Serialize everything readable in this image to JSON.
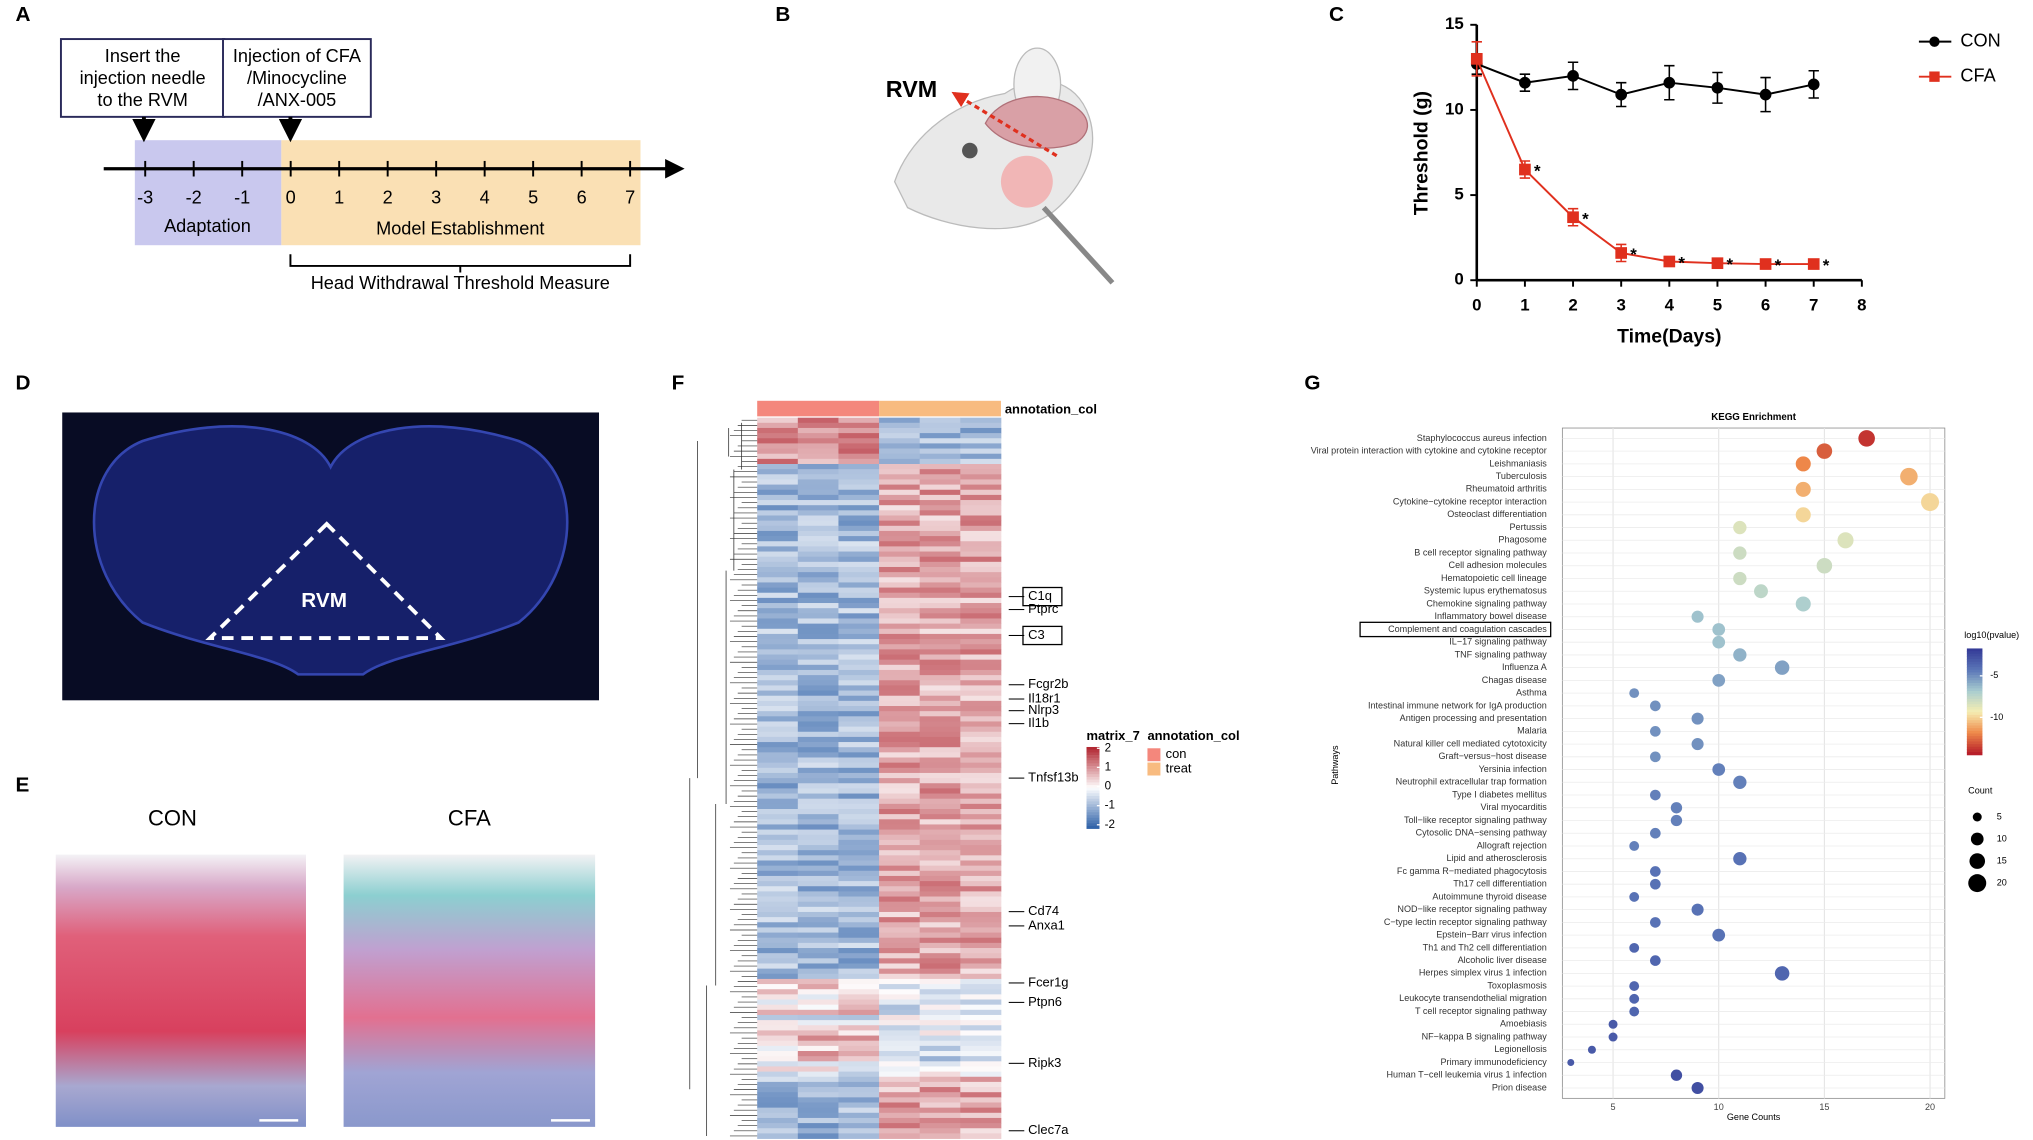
{
  "panel_labels": [
    "A",
    "B",
    "C",
    "D",
    "E",
    "F",
    "G"
  ],
  "panel_a": {
    "boxes": [
      [
        "Insert the",
        "injection needle",
        "to the RVM"
      ],
      [
        "Injection of CFA",
        "/Minocycline",
        "/ANX-005"
      ]
    ],
    "ticks": [
      "-3",
      "-2",
      "-1",
      "0",
      "1",
      "2",
      "3",
      "4",
      "5",
      "6",
      "7"
    ],
    "phases": [
      "Adaptation",
      "Model Establishment"
    ],
    "measure": "Head Withdrawal Threshold Measure"
  },
  "panel_b": {
    "label": "RVM"
  },
  "panel_d": {
    "label": "RVM"
  },
  "panel_e": {
    "labels": [
      "CON",
      "CFA"
    ]
  },
  "panel_f": {
    "annotation_title": "annotation_col",
    "legend_title": "matrix_7",
    "colorbar_ticks": [
      2,
      1,
      0,
      -1,
      -2
    ],
    "groups": [
      {
        "name": "con",
        "color": "#f4877c"
      },
      {
        "name": "treat",
        "color": "#f8bb80"
      }
    ],
    "genes": [
      {
        "name": "C1q",
        "boxed": true
      },
      {
        "name": "Ptprc",
        "boxed": false
      },
      {
        "name": "C3",
        "boxed": true
      },
      {
        "name": "Fcgr2b",
        "boxed": false
      },
      {
        "name": "Il18r1",
        "boxed": false
      },
      {
        "name": "Nlrp3",
        "boxed": false
      },
      {
        "name": "Il1b",
        "boxed": false
      },
      {
        "name": "Tnfsf13b",
        "boxed": false
      },
      {
        "name": "Cd74",
        "boxed": false
      },
      {
        "name": "Anxa1",
        "boxed": false
      },
      {
        "name": "Fcer1g",
        "boxed": false
      },
      {
        "name": "Ptpn6",
        "boxed": false
      },
      {
        "name": "Ripk3",
        "boxed": false
      },
      {
        "name": "Clec7a",
        "boxed": false
      }
    ]
  },
  "chart_data": [
    {
      "type": "line",
      "xlabel": "Time(Days)",
      "ylabel": "Threshold (g)",
      "x": [
        0,
        1,
        2,
        3,
        4,
        5,
        6,
        7
      ],
      "xlim": [
        0,
        8
      ],
      "xticks": [
        0,
        1,
        2,
        3,
        4,
        5,
        6,
        7,
        8
      ],
      "ylim": [
        0,
        15
      ],
      "yticks": [
        0,
        5,
        10,
        15
      ],
      "legend": "upper right",
      "series": [
        {
          "name": "CON",
          "color": "#000000",
          "marker": "circle",
          "values": [
            12.7,
            11.6,
            12.0,
            10.9,
            11.6,
            11.3,
            10.9,
            11.5
          ],
          "errors": [
            0.6,
            0.5,
            0.8,
            0.7,
            1.0,
            0.9,
            1.0,
            0.8
          ]
        },
        {
          "name": "CFA",
          "color": "#e0301e",
          "marker": "square",
          "values": [
            13.0,
            6.5,
            3.7,
            1.6,
            1.1,
            1.0,
            0.95,
            0.95
          ],
          "errors": [
            1.0,
            0.5,
            0.5,
            0.5,
            0.2,
            0.2,
            0.2,
            0.2
          ],
          "annotations": [
            null,
            "*",
            "*",
            "*",
            "*",
            "*",
            "*",
            "*"
          ]
        }
      ]
    },
    {
      "type": "dot",
      "title": "KEGG Enrichment",
      "xlabel": "Gene Counts",
      "ylabel": "Pathways",
      "grid": true,
      "categories": [
        "Staphylococcus aureus infection",
        "Viral protein interaction with cytokine and cytokine receptor",
        "Leishmaniasis",
        "Tuberculosis",
        "Rheumatoid arthritis",
        "Cytokine−cytokine receptor interaction",
        "Osteoclast differentiation",
        "Pertussis",
        "Phagosome",
        "B cell receptor signaling pathway",
        "Cell adhesion molecules",
        "Hematopoietic cell lineage",
        "Systemic lupus erythematosus",
        "Chemokine signaling pathway",
        "Inflammatory bowel disease",
        "Complement and coagulation cascades",
        "IL−17 signaling pathway",
        "TNF signaling pathway",
        "Influenza A",
        "Chagas disease",
        "Asthma",
        "Intestinal immune network for IgA production",
        "Antigen processing and presentation",
        "Malaria",
        "Natural killer cell mediated cytotoxicity",
        "Graft−versus−host disease",
        "Yersinia infection",
        "Neutrophil extracellular trap formation",
        "Type I diabetes mellitus",
        "Viral myocarditis",
        "Toll−like receptor signaling pathway",
        "Cytosolic DNA−sensing pathway",
        "Allograft rejection",
        "Lipid and atherosclerosis",
        "Fc gamma R−mediated phagocytosis",
        "Th17 cell differentiation",
        "Autoimmune thyroid disease",
        "NOD−like receptor signaling pathway",
        "C−type lectin receptor signaling pathway",
        "Epstein−Barr virus infection",
        "Th1 and Th2 cell differentiation",
        "Alcoholic liver disease",
        "Herpes simplex virus 1 infection",
        "Toxoplasmosis",
        "Leukocyte transendothelial migration",
        "T cell receptor signaling pathway",
        "Amoebiasis",
        "NF−kappa B signaling pathway",
        "Legionellosis",
        "Primary immunodeficiency",
        "Human T−cell leukemia virus 1 infection",
        "Prion disease"
      ],
      "values": [
        17,
        15,
        14,
        19,
        14,
        20,
        14,
        11,
        16,
        11,
        15,
        11,
        12,
        14,
        9,
        10,
        10,
        11,
        13,
        10,
        6,
        7,
        9,
        7,
        9,
        7,
        10,
        11,
        7,
        8,
        8,
        7,
        6,
        11,
        7,
        7,
        6,
        9,
        7,
        10,
        6,
        7,
        13,
        6,
        6,
        6,
        5,
        5,
        4,
        3,
        8,
        9
      ],
      "sizes": [
        17,
        15,
        14,
        19,
        14,
        20,
        14,
        11,
        16,
        11,
        15,
        11,
        12,
        14,
        9,
        10,
        10,
        11,
        13,
        10,
        6,
        7,
        9,
        7,
        9,
        7,
        10,
        11,
        7,
        8,
        8,
        7,
        6,
        11,
        7,
        7,
        6,
        9,
        7,
        10,
        6,
        7,
        13,
        6,
        6,
        6,
        5,
        5,
        4,
        3,
        8,
        9
      ],
      "log10_pvalue": [
        -14,
        -13,
        -12,
        -11,
        -11,
        -10,
        -10,
        -8.5,
        -8.5,
        -8,
        -8,
        -8,
        -7.5,
        -7,
        -6.5,
        -6.5,
        -6.5,
        -6,
        -5.5,
        -5.5,
        -5,
        -5,
        -5,
        -5,
        -5,
        -5,
        -4.5,
        -4.5,
        -4.5,
        -4.5,
        -4.5,
        -4.5,
        -4.5,
        -4,
        -4,
        -4,
        -4,
        -4,
        -4,
        -4,
        -3.5,
        -3.5,
        -3.5,
        -3.5,
        -3.5,
        -3.5,
        -3,
        -3,
        -3,
        -3,
        -2.5,
        -2.5
      ],
      "highlight": 15,
      "xlim": [
        2.6,
        20.7
      ],
      "xticks": [
        5,
        10,
        15,
        20
      ],
      "color_label": "log10(pvalue)",
      "clim": [
        -14.5,
        -1.7
      ],
      "cticks": [
        -5,
        -10
      ],
      "colormap": [
        "#b81f2a",
        "#ef8a4a",
        "#f6eeb2",
        "#a9cdd0",
        "#5c78b8",
        "#353c98"
      ],
      "size_label": "Count",
      "size_ticks": [
        5,
        10,
        15,
        20
      ]
    }
  ]
}
